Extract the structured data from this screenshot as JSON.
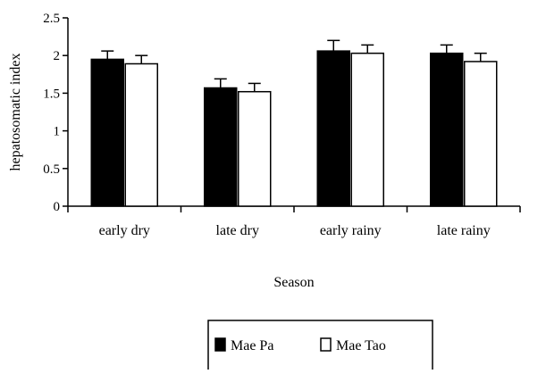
{
  "chart_data": {
    "type": "bar",
    "title": "",
    "xlabel": "Season",
    "ylabel": "hepatosomatic index",
    "categories": [
      "early dry",
      "late dry",
      "early rainy",
      "late rainy"
    ],
    "series": [
      {
        "name": "Mae Pa",
        "values": [
          1.95,
          1.57,
          2.06,
          2.03
        ],
        "errors": [
          0.11,
          0.12,
          0.14,
          0.11
        ],
        "color": "#000000"
      },
      {
        "name": "Mae Tao",
        "values": [
          1.89,
          1.52,
          2.03,
          1.92
        ],
        "errors": [
          0.11,
          0.11,
          0.11,
          0.11
        ],
        "color": "#ffffff"
      }
    ],
    "ylim": [
      0,
      2.5
    ],
    "yticks": [
      0,
      0.5,
      1,
      1.5,
      2,
      2.5
    ],
    "ytick_labels": [
      "0",
      "0.5",
      "1",
      "1.5",
      "2",
      "2.5"
    ],
    "grid": false,
    "legend_position": "bottom-center",
    "error_bars": true
  }
}
